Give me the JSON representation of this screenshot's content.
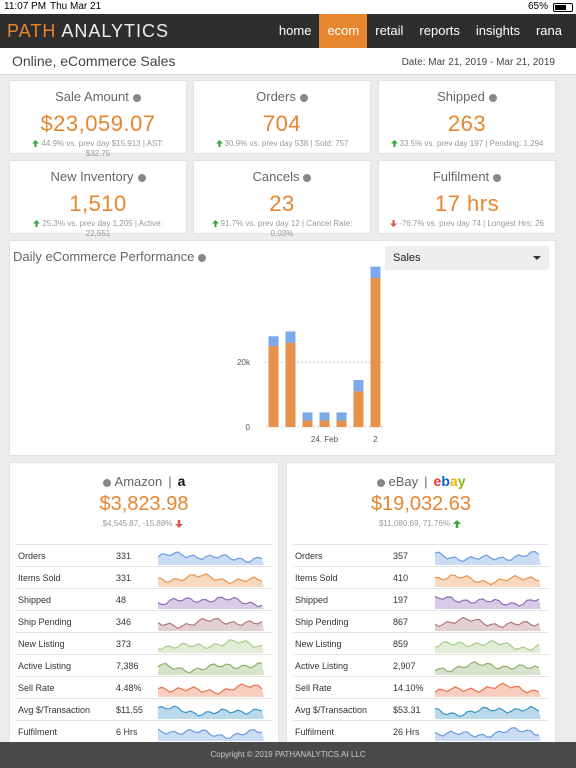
{
  "status_bar": {
    "time": "11:07 PM",
    "date": "Thu Mar 21",
    "battery": "65%"
  },
  "nav": {
    "logo_accent": "PATH",
    "logo_rest": "ANALYTICS",
    "items": [
      "home",
      "ecom",
      "retail",
      "reports",
      "insights",
      "rana"
    ],
    "active": 1
  },
  "header": {
    "title": "Online, eCommerce Sales",
    "date_range": "Date: Mar 21, 2019 - Mar 21, 2019"
  },
  "kpis": [
    {
      "title": "Sale Amount",
      "value": "$23,059.07",
      "detail": "44.9% vs. prev day $15,913 | AST: $32.75",
      "trend": "up"
    },
    {
      "title": "Orders",
      "value": "704",
      "detail": "30.9% vs. prev day 538 | Sold: 757",
      "trend": "up"
    },
    {
      "title": "Shipped",
      "value": "263",
      "detail": "33.5% vs. prev day 197 | Pending: 1,294",
      "trend": "up"
    },
    {
      "title": "New Inventory",
      "value": "1,510",
      "detail": "25.3% vs. prev day 1,205 | Active: 22,551",
      "trend": "up"
    },
    {
      "title": "Cancels",
      "value": "23",
      "detail": "91.7% vs. prev day 12 | Cancel Rate: 0.03%",
      "trend": "up"
    },
    {
      "title": "Fulfilment",
      "value": "17 hrs",
      "detail": "-76.7% vs. prev day 74 | Longest Hrs: 26",
      "trend": "down"
    }
  ],
  "chart_data": {
    "type": "bar",
    "title": "Daily eCommerce Performance",
    "stacked": true,
    "categories": [
      null,
      null,
      null,
      "24. Feb",
      null,
      null,
      "2"
    ],
    "series": [
      {
        "color": "#e8914a",
        "values": [
          25000,
          26000,
          2000,
          2000,
          2000,
          11000,
          46000
        ]
      },
      {
        "color": "#7ea8ec",
        "values": [
          3000,
          3500,
          2500,
          2500,
          2500,
          3500,
          3500
        ]
      }
    ],
    "ylim": [
      0,
      50000
    ],
    "yticks": [
      0,
      {
        "value": 20000,
        "label": "20k"
      }
    ],
    "grid": true
  },
  "dropdown": "Sales",
  "marketplaces": [
    {
      "name": "Amazon",
      "logo": "a",
      "total": "$3,823.98",
      "comparison": "$4,545.87, -15.88%",
      "trend": "down",
      "rows": [
        [
          "Orders",
          "331"
        ],
        [
          "Items Sold",
          "331"
        ],
        [
          "Shipped",
          "48"
        ],
        [
          "Ship Pending",
          "346"
        ],
        [
          "New Listing",
          "373"
        ],
        [
          "Active Listing",
          "7,386"
        ],
        [
          "Sell Rate",
          "4.48%"
        ],
        [
          "Avg $/Transaction",
          "$11.55"
        ],
        [
          "Fulfilment",
          "6 Hrs"
        ]
      ]
    },
    {
      "name": "eBay",
      "logo": "ebay",
      "total": "$19,032.63",
      "comparison": "$11,080.69, 71.76%",
      "trend": "up",
      "rows": [
        [
          "Orders",
          "357"
        ],
        [
          "Items Sold",
          "410"
        ],
        [
          "Shipped",
          "197"
        ],
        [
          "Ship Pending",
          "867"
        ],
        [
          "New Listing",
          "859"
        ],
        [
          "Active Listing",
          "2,907"
        ],
        [
          "Sell Rate",
          "14.10%"
        ],
        [
          "Avg $/Transaction",
          "$53.31"
        ],
        [
          "Fulfilment",
          "26 Hrs"
        ]
      ]
    }
  ],
  "footer": "Copyright © 2019 PATHANALYTICS.AI LLC"
}
